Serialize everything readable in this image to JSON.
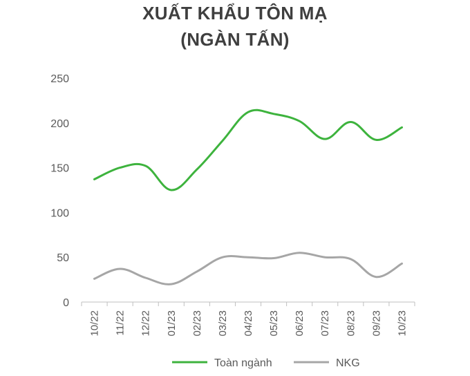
{
  "chart_data": {
    "type": "line",
    "title_line1": "XUẤT KHẨU TÔN MẠ",
    "title_line2": "(NGÀN TẤN)",
    "categories": [
      "10/22",
      "11/22",
      "12/22",
      "01/23",
      "02/23",
      "03/23",
      "04/23",
      "05/23",
      "06/23",
      "07/23",
      "08/23",
      "09/23",
      "10/23"
    ],
    "y_ticks": [
      "0",
      "50",
      "100",
      "150",
      "200",
      "250"
    ],
    "ylim": [
      0,
      250
    ],
    "grid": false,
    "legend_position": "bottom",
    "series": [
      {
        "name": "Toàn ngành",
        "color": "#3db33d",
        "values": [
          137,
          150,
          152,
          125,
          148,
          180,
          212,
          210,
          202,
          182,
          201,
          181,
          195
        ]
      },
      {
        "name": "NKG",
        "color": "#a6a6a6",
        "values": [
          26,
          37,
          27,
          20,
          34,
          50,
          50,
          49,
          55,
          50,
          48,
          28,
          43
        ]
      }
    ]
  }
}
